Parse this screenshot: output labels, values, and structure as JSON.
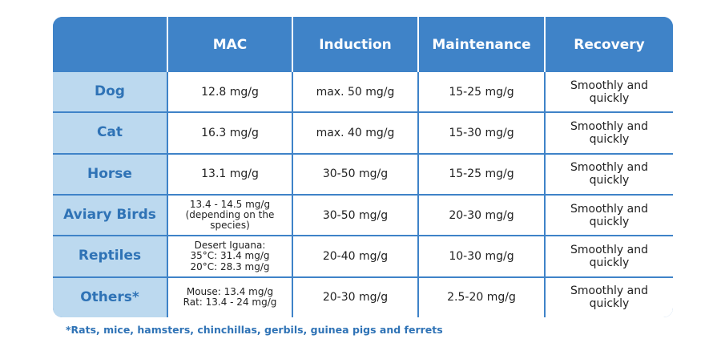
{
  "table": {
    "headers": [
      "",
      "MAC",
      "Induction",
      "Maintenance",
      "Recovery"
    ],
    "rows": [
      {
        "animal": "Dog",
        "mac": [
          "12.8 mg/g"
        ],
        "induction": "max. 50 mg/g",
        "maintenance": "15-25 mg/g",
        "recovery": [
          "Smoothly and",
          "quickly"
        ]
      },
      {
        "animal": "Cat",
        "mac": [
          "16.3 mg/g"
        ],
        "induction": "max. 40 mg/g",
        "maintenance": "15-30 mg/g",
        "recovery": [
          "Smoothly and",
          "quickly"
        ]
      },
      {
        "animal": "Horse",
        "mac": [
          "13.1 mg/g"
        ],
        "induction": "30-50 mg/g",
        "maintenance": "15-25 mg/g",
        "recovery": [
          "Smoothly and",
          "quickly"
        ]
      },
      {
        "animal": "Aviary Birds",
        "mac": [
          "13.4 - 14.5 mg/g",
          "(depending on the",
          "species)"
        ],
        "induction": "30-50 mg/g",
        "maintenance": "20-30 mg/g",
        "recovery": [
          "Smoothly and",
          "quickly"
        ]
      },
      {
        "animal": "Reptiles",
        "mac": [
          "Desert Iguana:",
          "35°C: 31.4 mg/g",
          "20°C: 28.3 mg/g"
        ],
        "induction": "20-40 mg/g",
        "maintenance": "10-30 mg/g",
        "recovery": [
          "Smoothly and",
          "quickly"
        ]
      },
      {
        "animal": "Others*",
        "mac": [
          "Mouse: 13.4 mg/g",
          "Rat: 13.4 - 24 mg/g"
        ],
        "induction": "20-30 mg/g",
        "maintenance": "2.5-20 mg/g",
        "recovery": [
          "Smoothly and",
          "quickly"
        ]
      }
    ]
  },
  "footnote": "*Rats, mice, hamsters, chinchillas, gerbils, guinea pigs and ferrets",
  "colors": {
    "header_bg": "#3f83c8",
    "animal_bg": "#bcd9ef",
    "animal_text": "#2f73b6",
    "footnote_text": "#2f73b6"
  }
}
